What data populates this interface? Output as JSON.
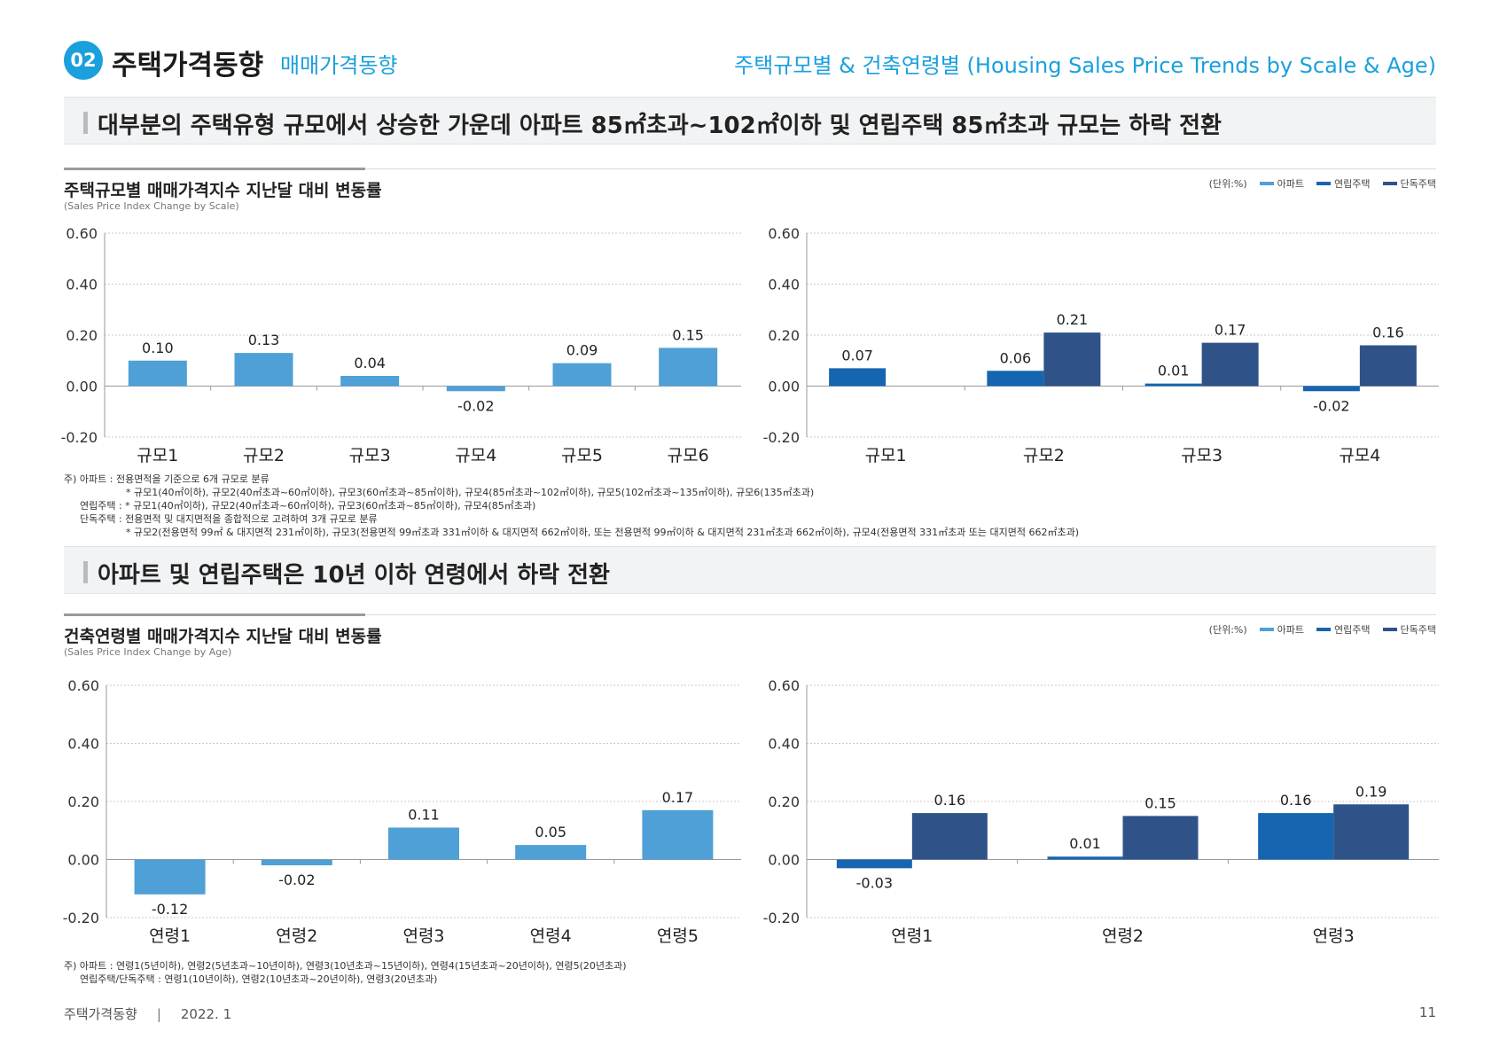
{
  "header": {
    "section_number": "02",
    "title": "주택가격동향",
    "subtitle": "매매가격동향",
    "right_title": "주택규모별 & 건축연령별 (Housing Sales Price Trends by Scale & Age)"
  },
  "section1": {
    "banner": "대부분의 주택유형 규모에서 상승한 가운데 아파트 85㎡초과~102㎡이하 및 연립주택 85㎡초과 규모는 하락 전환",
    "title": "주택규모별 매매가격지수 지난달 대비 변동률",
    "title_en": "(Sales Price Index Change by Scale)",
    "legend": {
      "unit": "(단위:%)",
      "items": [
        "아파트",
        "연립주택",
        "단독주택"
      ]
    },
    "notes": [
      "주) 아파트 : 전용면적을 기준으로 6개 규모로 분류",
      "* 규모1(40㎡이하), 규모2(40㎡초과~60㎡이하), 규모3(60㎡초과~85㎡이하), 규모4(85㎡초과~102㎡이하), 규모5(102㎡초과~135㎡이하), 규모6(135㎡초과)",
      "연립주택 : * 규모1(40㎡이하), 규모2(40㎡초과~60㎡이하), 규모3(60㎡초과~85㎡이하), 규모4(85㎡초과)",
      "단독주택 : 전용면적 및 대지면적을 종합적으로 고려하여 3개 규모로 분류",
      "* 규모2(전용면적 99㎡ & 대지면적 231㎡이하), 규모3(전용면적 99㎡초과 331㎡이하 & 대지면적 662㎡이하, 또는 전용면적 99㎡이하 & 대지면적 231㎡초과 662㎡이하), 규모4(전용면적 331㎡초과 또는 대지면적 662㎡초과)"
    ]
  },
  "section2": {
    "banner": "아파트 및 연립주택은 10년 이하 연령에서 하락 전환",
    "title": "건축연령별 매매가격지수 지난달 대비 변동률",
    "title_en": "(Sales Price Index Change by Age)",
    "legend": {
      "unit": "(단위:%)",
      "items": [
        "아파트",
        "연립주택",
        "단독주택"
      ]
    },
    "notes": [
      "주) 아파트 : 연령1(5년이하), 연령2(5년초과~10년이하), 연령3(10년초과~15년이하), 연령4(15년초과~20년이하), 연령5(20년초과)",
      "연립주택/단독주택 : 연령1(10년이하), 연령2(10년초과~20년이하), 연령3(20년초과)"
    ]
  },
  "colors": {
    "apt": "#4fa0d6",
    "row": "#1565b0",
    "detached": "#2f5388"
  },
  "footer": {
    "left": "주택가격동향",
    "date": "2022. 1",
    "page": "11"
  },
  "chart_data": [
    {
      "type": "bar",
      "categories": [
        "규모1",
        "규모2",
        "규모3",
        "규모4",
        "규모5",
        "규모6"
      ],
      "series": [
        {
          "name": "아파트",
          "values": [
            0.1,
            0.13,
            0.04,
            -0.02,
            0.09,
            0.15
          ]
        }
      ],
      "ylim": [
        -0.2,
        0.6
      ],
      "yticks": [
        "0.60",
        "0.40",
        "0.20",
        "0.00",
        "-0.20"
      ],
      "grid": true
    },
    {
      "type": "bar",
      "categories": [
        "규모1",
        "규모2",
        "규모3",
        "규모4"
      ],
      "series": [
        {
          "name": "연립주택",
          "values": [
            0.07,
            0.06,
            0.01,
            -0.02
          ]
        },
        {
          "name": "단독주택",
          "values": [
            null,
            0.21,
            0.17,
            0.16
          ]
        }
      ],
      "ylim": [
        -0.2,
        0.6
      ],
      "yticks": [
        "0.60",
        "0.40",
        "0.20",
        "0.00",
        "-0.20"
      ],
      "grid": true
    },
    {
      "type": "bar",
      "categories": [
        "연령1",
        "연령2",
        "연령3",
        "연령4",
        "연령5"
      ],
      "series": [
        {
          "name": "아파트",
          "values": [
            -0.12,
            -0.02,
            0.11,
            0.05,
            0.17
          ]
        }
      ],
      "ylim": [
        -0.2,
        0.6
      ],
      "yticks": [
        "0.60",
        "0.40",
        "0.20",
        "0.00",
        "-0.20"
      ],
      "grid": true
    },
    {
      "type": "bar",
      "categories": [
        "연령1",
        "연령2",
        "연령3"
      ],
      "series": [
        {
          "name": "연립주택",
          "values": [
            -0.03,
            0.01,
            0.16
          ]
        },
        {
          "name": "단독주택",
          "values": [
            0.16,
            0.15,
            0.19
          ]
        }
      ],
      "ylim": [
        -0.2,
        0.6
      ],
      "yticks": [
        "0.60",
        "0.40",
        "0.20",
        "0.00",
        "-0.20"
      ],
      "grid": true
    }
  ]
}
